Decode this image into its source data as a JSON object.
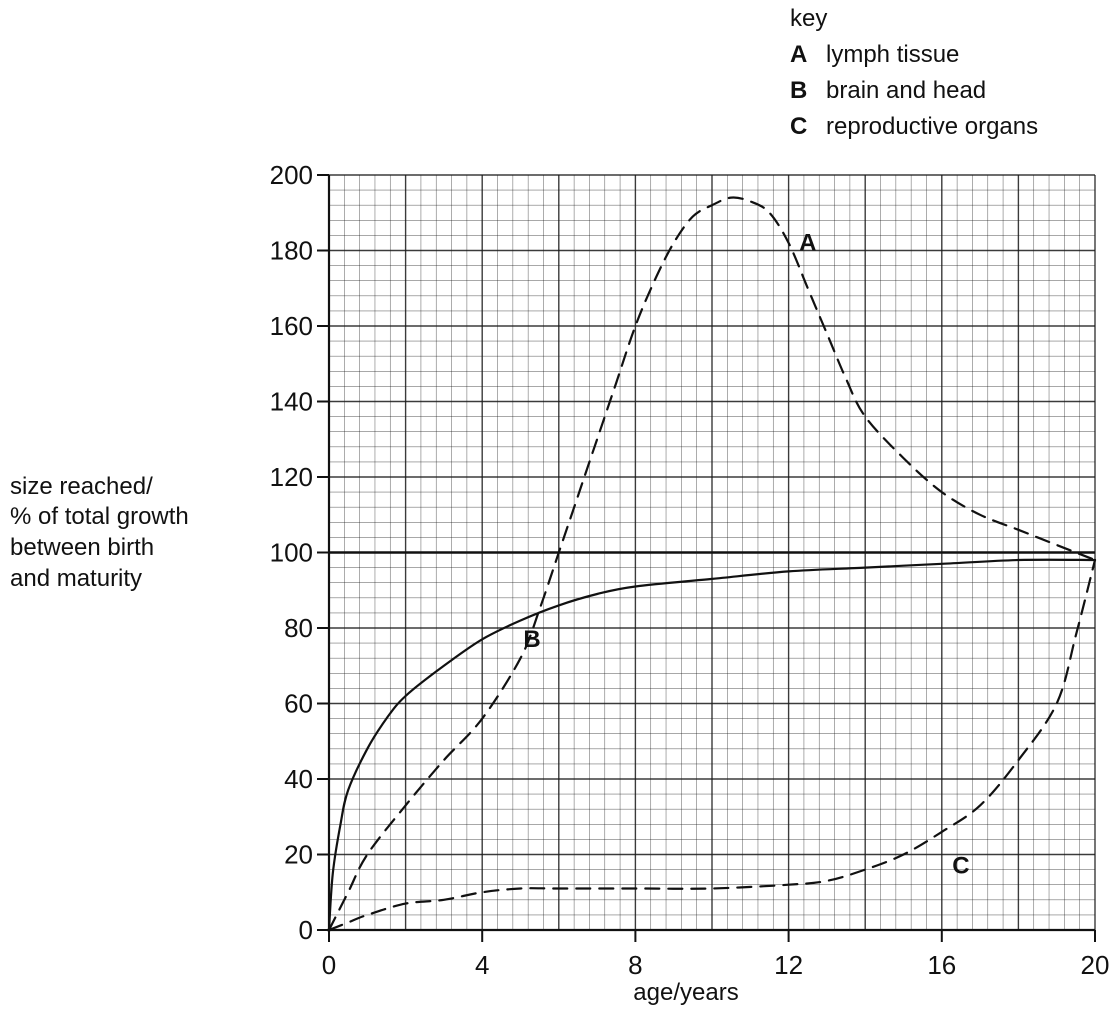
{
  "chart_data": {
    "type": "line",
    "xlabel": "age/years",
    "ylabel_lines": [
      "size reached/",
      "% of total growth",
      "between birth",
      "and maturity"
    ],
    "xlim": [
      0,
      20
    ],
    "ylim": [
      0,
      200
    ],
    "x_ticks": [
      "0",
      "4",
      "8",
      "12",
      "16",
      "20"
    ],
    "y_ticks": [
      "0",
      "20",
      "40",
      "60",
      "80",
      "100",
      "120",
      "140",
      "160",
      "180",
      "200"
    ],
    "grid": true,
    "legend": {
      "title": "key",
      "placement": "top-right",
      "entries": [
        {
          "letter": "A",
          "text": "lymph tissue"
        },
        {
          "letter": "B",
          "text": "brain and head"
        },
        {
          "letter": "C",
          "text": "reproductive organs"
        }
      ]
    },
    "reference_line_y": 100,
    "series": [
      {
        "letter": "A",
        "style": "dashed",
        "label_at": [
          12.5,
          180
        ],
        "points": [
          [
            0,
            0
          ],
          [
            0.5,
            10
          ],
          [
            1,
            20
          ],
          [
            2,
            33
          ],
          [
            3,
            45
          ],
          [
            4,
            56
          ],
          [
            5,
            72
          ],
          [
            5.5,
            85
          ],
          [
            6,
            100
          ],
          [
            6.5,
            115
          ],
          [
            7,
            130
          ],
          [
            7.5,
            145
          ],
          [
            8,
            160
          ],
          [
            8.5,
            172
          ],
          [
            9,
            182
          ],
          [
            9.5,
            189
          ],
          [
            10,
            192
          ],
          [
            10.5,
            194
          ],
          [
            11,
            193
          ],
          [
            11.5,
            190
          ],
          [
            12,
            182
          ],
          [
            12.5,
            170
          ],
          [
            13,
            158
          ],
          [
            13.5,
            146
          ],
          [
            14,
            136
          ],
          [
            15,
            125
          ],
          [
            16,
            116
          ],
          [
            17,
            110
          ],
          [
            18,
            106
          ],
          [
            19,
            102
          ],
          [
            20,
            98
          ]
        ]
      },
      {
        "letter": "B",
        "style": "solid",
        "label_at": [
          5.3,
          75
        ],
        "points": [
          [
            0,
            0
          ],
          [
            0.1,
            15
          ],
          [
            0.3,
            28
          ],
          [
            0.5,
            37
          ],
          [
            1,
            48
          ],
          [
            1.5,
            56
          ],
          [
            2,
            62
          ],
          [
            3,
            70
          ],
          [
            4,
            77
          ],
          [
            5,
            82
          ],
          [
            6,
            86
          ],
          [
            7,
            89
          ],
          [
            8,
            91
          ],
          [
            10,
            93
          ],
          [
            12,
            95
          ],
          [
            14,
            96
          ],
          [
            16,
            97
          ],
          [
            18,
            98
          ],
          [
            20,
            98
          ]
        ]
      },
      {
        "letter": "C",
        "style": "dashed",
        "label_at": [
          16.5,
          15
        ],
        "points": [
          [
            0,
            0
          ],
          [
            0.5,
            2
          ],
          [
            1,
            4
          ],
          [
            2,
            7
          ],
          [
            3,
            8
          ],
          [
            4,
            10
          ],
          [
            5,
            11
          ],
          [
            6,
            11
          ],
          [
            8,
            11
          ],
          [
            10,
            11
          ],
          [
            12,
            12
          ],
          [
            13,
            13
          ],
          [
            14,
            16
          ],
          [
            15,
            20
          ],
          [
            16,
            26
          ],
          [
            17,
            33
          ],
          [
            18,
            45
          ],
          [
            19,
            60
          ],
          [
            19.5,
            78
          ],
          [
            20,
            98
          ]
        ]
      }
    ]
  }
}
